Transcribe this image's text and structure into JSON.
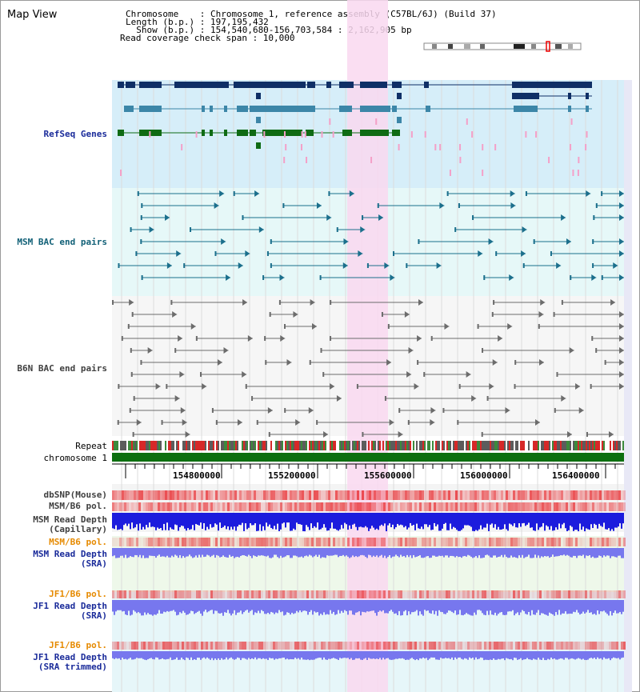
{
  "title": "Map View",
  "header": {
    "lines": [
      "Chromosome    : Chromosome 1, reference assembly (C57BL/6J) (Build 37)",
      "Length (b.p.) : 197,195,432",
      "  Show (b.p.) : 154,540,680-156,703,584 : 2,162,905 bp",
      "Read coverage check span : 10,000"
    ]
  },
  "ruler": {
    "ticks": [
      "154800000",
      "155200000",
      "155600000",
      "156000000",
      "156400000"
    ]
  },
  "tracks": {
    "refseq": "RefSeq Genes",
    "msm_bac": "MSM BAC end pairs",
    "b6n_bac": "B6N BAC end pairs",
    "repeat": "Repeat",
    "chromosome": "chromosome 1",
    "dbsnp": "dbSNP(Mouse)",
    "msm_pol": "MSM/B6 pol.",
    "msm_depth_cap_1": "MSM Read Depth",
    "msm_depth_cap_2": "(Capillary)",
    "msm_pol_sra": "MSM/B6 pol.",
    "msm_depth_sra_1": "MSM Read Depth",
    "msm_depth_sra_2": "(SRA)",
    "jf1_pol": "JF1/B6 pol.",
    "jf1_depth_1": "JF1 Read Depth",
    "jf1_depth_2": "(SRA)",
    "jf1_pol_trim": "JF1/B6 pol.",
    "jf1_trim_1": "JF1 Read Depth",
    "jf1_trim_2": "(SRA trimmed)"
  },
  "colors": {
    "highlight": "#f9d8f0",
    "refseq_bg": "#d6eef9",
    "msm_bg": "#e6f8f8",
    "sra_bg": "#eef8ea",
    "label_navy": "#1a2b9a",
    "label_teal": "#116077",
    "label_gray": "#404040",
    "label_orange": "#e68a00",
    "gene_dark": "#0f2f66",
    "gene_mid": "#3c86a8",
    "gene_green": "#0f6b14",
    "depth_blue": "#1c1cdd",
    "depth_violet": "#7777ee"
  }
}
